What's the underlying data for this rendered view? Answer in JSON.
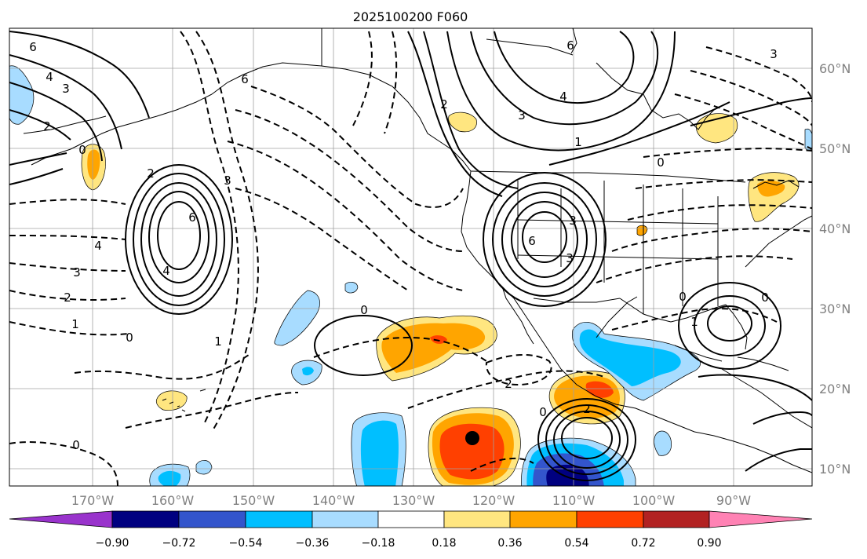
{
  "title": "2025100200 F060",
  "colors": {
    "neg_090": "#9933cc",
    "neg_072": "#000080",
    "neg_054": "#3355cc",
    "neg_036": "#00bfff",
    "neg_018": "#a8dcff",
    "neutral": "#ffffff",
    "pos_018": "#ffe680",
    "pos_036": "#ffa500",
    "pos_054": "#ff4000",
    "pos_072": "#b22222",
    "pos_090": "#ff82b4",
    "coast": "#000000",
    "grid": "#a0a0a0"
  },
  "longitude_labels": [
    "170°W",
    "160°W",
    "150°W",
    "140°W",
    "130°W",
    "120°W",
    "110°W",
    "100°W",
    "90°W"
  ],
  "latitude_labels": [
    "60°N",
    "50°N",
    "40°N",
    "30°N",
    "20°N",
    "10°N"
  ],
  "colorbar": {
    "ticks": [
      "−0.90",
      "−0.72",
      "−0.54",
      "−0.36",
      "−0.18",
      "0.18",
      "0.36",
      "0.54",
      "0.72",
      "0.90"
    ]
  },
  "contour_labels": {
    "c1": "6",
    "c2": "4",
    "c3": "3",
    "c4": "2",
    "c5": "6",
    "c6": "0",
    "c7": "4",
    "c8": "3",
    "c9": "2",
    "c10": "1",
    "c11": "0",
    "c12": "0",
    "c13": "2",
    "c14": "6",
    "c15": "4",
    "c16": "3",
    "c17": "1",
    "c18": "0",
    "c19": "2",
    "c20": "2",
    "c21": "0",
    "c22": "6",
    "c23": "4",
    "c24": "3",
    "c25": "0",
    "c26": "3",
    "c27": "3",
    "c28": "1",
    "c29": "0",
    "c30": "0",
    "c31": "6",
    "c32": "2",
    "c33": "1",
    "c34": "3"
  }
}
